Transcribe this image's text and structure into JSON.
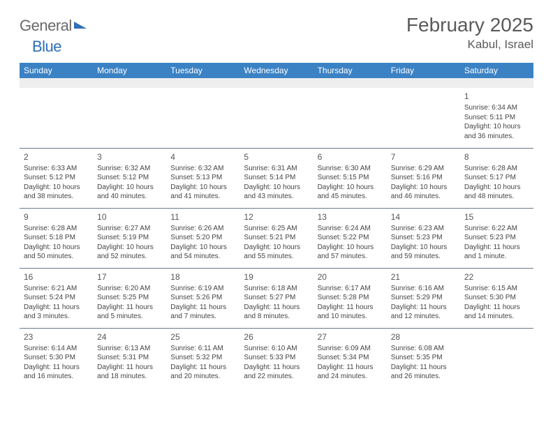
{
  "brand": {
    "part1": "General",
    "part2": "Blue"
  },
  "title": "February 2025",
  "location": "Kabul, Israel",
  "colors": {
    "header_bg": "#3b82c4",
    "header_fg": "#ffffff",
    "spacer_bg": "#eeeeee",
    "rule": "#6b7a8a",
    "text": "#444444",
    "title_text": "#5a5a5a",
    "brand_gray": "#6a6a6a",
    "brand_blue": "#2d6fb8"
  },
  "day_headers": [
    "Sunday",
    "Monday",
    "Tuesday",
    "Wednesday",
    "Thursday",
    "Friday",
    "Saturday"
  ],
  "weeks": [
    [
      null,
      null,
      null,
      null,
      null,
      null,
      {
        "n": "1",
        "sunrise": "Sunrise: 6:34 AM",
        "sunset": "Sunset: 5:11 PM",
        "day": "Daylight: 10 hours and 36 minutes."
      }
    ],
    [
      {
        "n": "2",
        "sunrise": "Sunrise: 6:33 AM",
        "sunset": "Sunset: 5:12 PM",
        "day": "Daylight: 10 hours and 38 minutes."
      },
      {
        "n": "3",
        "sunrise": "Sunrise: 6:32 AM",
        "sunset": "Sunset: 5:12 PM",
        "day": "Daylight: 10 hours and 40 minutes."
      },
      {
        "n": "4",
        "sunrise": "Sunrise: 6:32 AM",
        "sunset": "Sunset: 5:13 PM",
        "day": "Daylight: 10 hours and 41 minutes."
      },
      {
        "n": "5",
        "sunrise": "Sunrise: 6:31 AM",
        "sunset": "Sunset: 5:14 PM",
        "day": "Daylight: 10 hours and 43 minutes."
      },
      {
        "n": "6",
        "sunrise": "Sunrise: 6:30 AM",
        "sunset": "Sunset: 5:15 PM",
        "day": "Daylight: 10 hours and 45 minutes."
      },
      {
        "n": "7",
        "sunrise": "Sunrise: 6:29 AM",
        "sunset": "Sunset: 5:16 PM",
        "day": "Daylight: 10 hours and 46 minutes."
      },
      {
        "n": "8",
        "sunrise": "Sunrise: 6:28 AM",
        "sunset": "Sunset: 5:17 PM",
        "day": "Daylight: 10 hours and 48 minutes."
      }
    ],
    [
      {
        "n": "9",
        "sunrise": "Sunrise: 6:28 AM",
        "sunset": "Sunset: 5:18 PM",
        "day": "Daylight: 10 hours and 50 minutes."
      },
      {
        "n": "10",
        "sunrise": "Sunrise: 6:27 AM",
        "sunset": "Sunset: 5:19 PM",
        "day": "Daylight: 10 hours and 52 minutes."
      },
      {
        "n": "11",
        "sunrise": "Sunrise: 6:26 AM",
        "sunset": "Sunset: 5:20 PM",
        "day": "Daylight: 10 hours and 54 minutes."
      },
      {
        "n": "12",
        "sunrise": "Sunrise: 6:25 AM",
        "sunset": "Sunset: 5:21 PM",
        "day": "Daylight: 10 hours and 55 minutes."
      },
      {
        "n": "13",
        "sunrise": "Sunrise: 6:24 AM",
        "sunset": "Sunset: 5:22 PM",
        "day": "Daylight: 10 hours and 57 minutes."
      },
      {
        "n": "14",
        "sunrise": "Sunrise: 6:23 AM",
        "sunset": "Sunset: 5:23 PM",
        "day": "Daylight: 10 hours and 59 minutes."
      },
      {
        "n": "15",
        "sunrise": "Sunrise: 6:22 AM",
        "sunset": "Sunset: 5:23 PM",
        "day": "Daylight: 11 hours and 1 minute."
      }
    ],
    [
      {
        "n": "16",
        "sunrise": "Sunrise: 6:21 AM",
        "sunset": "Sunset: 5:24 PM",
        "day": "Daylight: 11 hours and 3 minutes."
      },
      {
        "n": "17",
        "sunrise": "Sunrise: 6:20 AM",
        "sunset": "Sunset: 5:25 PM",
        "day": "Daylight: 11 hours and 5 minutes."
      },
      {
        "n": "18",
        "sunrise": "Sunrise: 6:19 AM",
        "sunset": "Sunset: 5:26 PM",
        "day": "Daylight: 11 hours and 7 minutes."
      },
      {
        "n": "19",
        "sunrise": "Sunrise: 6:18 AM",
        "sunset": "Sunset: 5:27 PM",
        "day": "Daylight: 11 hours and 8 minutes."
      },
      {
        "n": "20",
        "sunrise": "Sunrise: 6:17 AM",
        "sunset": "Sunset: 5:28 PM",
        "day": "Daylight: 11 hours and 10 minutes."
      },
      {
        "n": "21",
        "sunrise": "Sunrise: 6:16 AM",
        "sunset": "Sunset: 5:29 PM",
        "day": "Daylight: 11 hours and 12 minutes."
      },
      {
        "n": "22",
        "sunrise": "Sunrise: 6:15 AM",
        "sunset": "Sunset: 5:30 PM",
        "day": "Daylight: 11 hours and 14 minutes."
      }
    ],
    [
      {
        "n": "23",
        "sunrise": "Sunrise: 6:14 AM",
        "sunset": "Sunset: 5:30 PM",
        "day": "Daylight: 11 hours and 16 minutes."
      },
      {
        "n": "24",
        "sunrise": "Sunrise: 6:13 AM",
        "sunset": "Sunset: 5:31 PM",
        "day": "Daylight: 11 hours and 18 minutes."
      },
      {
        "n": "25",
        "sunrise": "Sunrise: 6:11 AM",
        "sunset": "Sunset: 5:32 PM",
        "day": "Daylight: 11 hours and 20 minutes."
      },
      {
        "n": "26",
        "sunrise": "Sunrise: 6:10 AM",
        "sunset": "Sunset: 5:33 PM",
        "day": "Daylight: 11 hours and 22 minutes."
      },
      {
        "n": "27",
        "sunrise": "Sunrise: 6:09 AM",
        "sunset": "Sunset: 5:34 PM",
        "day": "Daylight: 11 hours and 24 minutes."
      },
      {
        "n": "28",
        "sunrise": "Sunrise: 6:08 AM",
        "sunset": "Sunset: 5:35 PM",
        "day": "Daylight: 11 hours and 26 minutes."
      },
      null
    ]
  ]
}
